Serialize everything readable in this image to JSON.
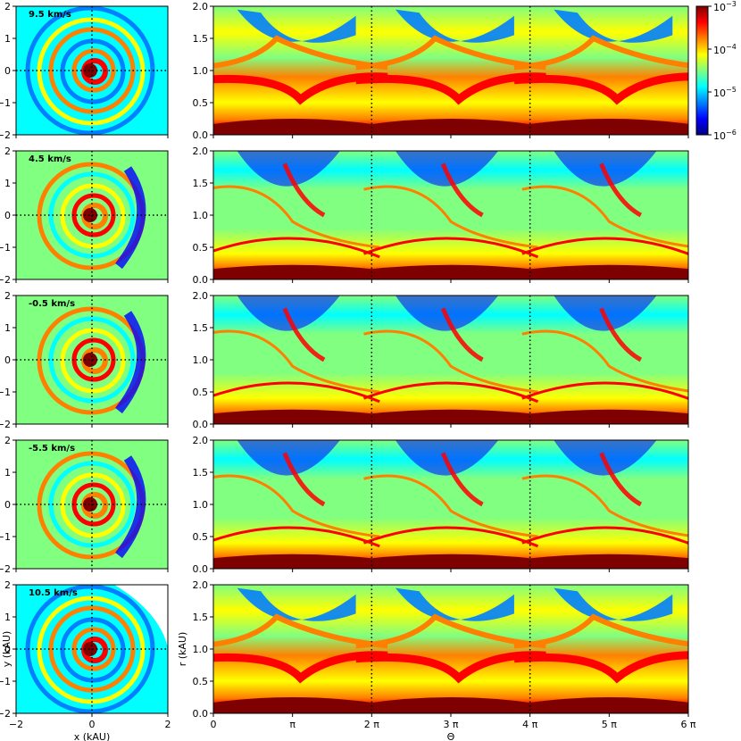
{
  "chart_data": {
    "type": "heatmap",
    "description_free": true,
    "colormap": [
      "#00007f",
      "#0000ff",
      "#0080ff",
      "#00ffff",
      "#80ff80",
      "#ffff00",
      "#ff8000",
      "#ff0000",
      "#7f0000"
    ],
    "colorbar": {
      "scale": "log",
      "range": [
        1e-06,
        0.001
      ],
      "ticks": [
        {
          "value": 0.001,
          "mantissa": "10",
          "exp": "−3"
        },
        {
          "value": 0.0001,
          "mantissa": "10",
          "exp": "−4"
        },
        {
          "value": 1e-05,
          "mantissa": "10",
          "exp": "−5"
        },
        {
          "value": 1e-06,
          "mantissa": "10",
          "exp": "−6"
        }
      ]
    },
    "left_panels": {
      "xlabel": "x (kAU)",
      "ylabel": "y (kAU)",
      "xlim": [
        -2,
        2
      ],
      "ylim": [
        -2,
        2
      ],
      "xticks": [
        {
          "v": -2,
          "t": "−2"
        },
        {
          "v": 0,
          "t": "0"
        },
        {
          "v": 2,
          "t": "2"
        }
      ],
      "yticks": [
        {
          "v": 2,
          "t": "2"
        },
        {
          "v": 1,
          "t": "1"
        },
        {
          "v": 0,
          "t": "0"
        },
        {
          "v": -1,
          "t": "−1"
        },
        {
          "v": -2,
          "t": "−2"
        }
      ]
    },
    "right_panels": {
      "xlabel": "Θ",
      "ylabel": "r (kAU)",
      "xlim": [
        0,
        6
      ],
      "ylim": [
        0,
        2
      ],
      "xticks": [
        {
          "v": 0,
          "t": "0"
        },
        {
          "v": 1,
          "t": "π"
        },
        {
          "v": 2,
          "t": "2 π"
        },
        {
          "v": 3,
          "t": "3 π"
        },
        {
          "v": 4,
          "t": "4 π"
        },
        {
          "v": 5,
          "t": "5 π"
        },
        {
          "v": 6,
          "t": "6 π"
        }
      ],
      "yticks": [
        {
          "v": 2,
          "t": "2.0"
        },
        {
          "v": 1.5,
          "t": "1.5"
        },
        {
          "v": 1,
          "t": "1.0"
        },
        {
          "v": 0.5,
          "t": "0.5"
        },
        {
          "v": 0,
          "t": "0.0"
        }
      ],
      "dotted_verticals": [
        2,
        4
      ]
    },
    "rows": [
      {
        "label": "9.5 km/s",
        "style": "a"
      },
      {
        "label": "4.5 km/s",
        "style": "b"
      },
      {
        "label": "-0.5 km/s",
        "style": "b"
      },
      {
        "label": "-5.5 km/s",
        "style": "b"
      },
      {
        "label": "10.5 km/s",
        "style": "a"
      }
    ]
  }
}
